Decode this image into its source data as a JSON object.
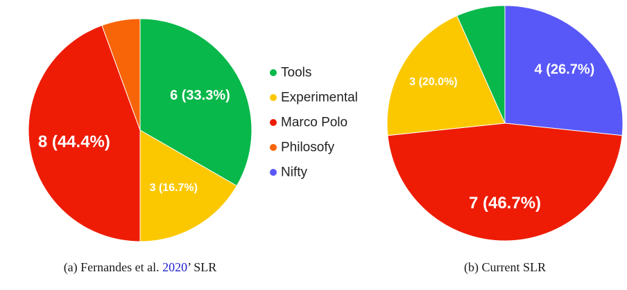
{
  "chart_data": [
    {
      "type": "pie",
      "caption": {
        "prefix": "(a) Fernandes et al. ",
        "citation": "2020",
        "suffix": "’ SLR"
      },
      "slices": [
        {
          "name": "Tools",
          "value": 6,
          "label": "6 (33.3%)",
          "color": "#08b84a"
        },
        {
          "name": "Experimental",
          "value": 3,
          "label": "3 (16.7%)",
          "color": "#fbc800"
        },
        {
          "name": "Marco Polo",
          "value": 8,
          "label": "8 (44.4%)",
          "color": "#ee1c05"
        },
        {
          "name": "Philosofy",
          "value": 1,
          "label": "",
          "color": "#f86408"
        }
      ]
    },
    {
      "type": "pie",
      "caption": {
        "text": "(b) Current SLR"
      },
      "slices": [
        {
          "name": "Nifty",
          "value": 4,
          "label": "4 (26.7%)",
          "color": "#5858f8"
        },
        {
          "name": "Marco Polo",
          "value": 7,
          "label": "7 (46.7%)",
          "color": "#ee1c05"
        },
        {
          "name": "Experimental",
          "value": 3,
          "label": "3 (20.0%)",
          "color": "#fbc800"
        },
        {
          "name": "Tools",
          "value": 1,
          "label": "",
          "color": "#08b84a"
        }
      ]
    }
  ],
  "legend": [
    {
      "name": "Tools",
      "color": "#08b84a"
    },
    {
      "name": "Experimental",
      "color": "#fbc800"
    },
    {
      "name": "Marco Polo",
      "color": "#ee1c05"
    },
    {
      "name": "Philosofy",
      "color": "#f86408"
    },
    {
      "name": "Nifty",
      "color": "#5858f8"
    }
  ]
}
